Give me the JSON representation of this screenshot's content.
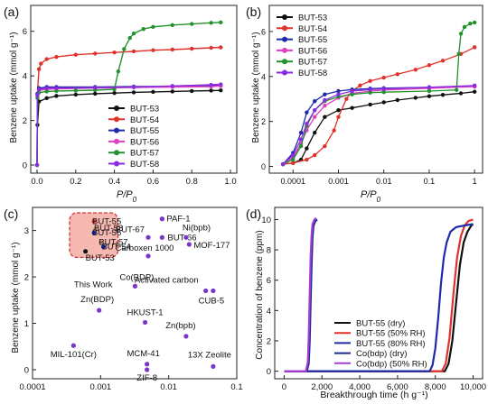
{
  "figure": {
    "panels": [
      "(a)",
      "(b)",
      "(c)",
      "(d)"
    ],
    "colors": {
      "BUT-53": "#111111",
      "BUT-54": "#e0322b",
      "BUT-55": "#1f2aa8",
      "BUT-56": "#e03ec0",
      "BUT-57": "#22922c",
      "BUT-58": "#8a2be2",
      "cbdp-dry": "#1b2b8f",
      "cbdp-wet": "#a43cd6",
      "purple-marker": "#7a35c9",
      "highlight-fill": "#f6b9b2",
      "highlight-stroke": "#d23a3a"
    }
  },
  "chart_data": [
    {
      "panel": "(a)",
      "type": "line",
      "xlabel": "P/P0",
      "ylabel": "Benzene uptake (mmol g⁻¹)",
      "xlim": [
        0,
        1.0
      ],
      "ylim": [
        0,
        7
      ],
      "xticks": [
        "0.0",
        "0.2",
        "0.4",
        "0.6",
        "0.8",
        "1.0"
      ],
      "yticks": [
        "0",
        "2",
        "4",
        "6"
      ],
      "legend": "bottom-right",
      "series": [
        {
          "name": "BUT-53",
          "x": [
            0.0,
            0.002,
            0.01,
            0.05,
            0.1,
            0.2,
            0.3,
            0.4,
            0.5,
            0.6,
            0.7,
            0.8,
            0.9,
            0.95
          ],
          "y": [
            0,
            1.8,
            2.85,
            3.0,
            3.1,
            3.16,
            3.2,
            3.23,
            3.26,
            3.28,
            3.3,
            3.32,
            3.34,
            3.35
          ]
        },
        {
          "name": "BUT-54",
          "x": [
            0.0,
            0.002,
            0.01,
            0.02,
            0.05,
            0.1,
            0.2,
            0.3,
            0.4,
            0.5,
            0.6,
            0.7,
            0.8,
            0.9,
            0.95
          ],
          "y": [
            0,
            3.2,
            4.3,
            4.55,
            4.75,
            4.85,
            4.95,
            5.0,
            5.05,
            5.1,
            5.15,
            5.18,
            5.22,
            5.26,
            5.28
          ]
        },
        {
          "name": "BUT-55",
          "x": [
            0.0,
            0.002,
            0.01,
            0.05,
            0.1,
            0.3,
            0.5,
            0.7,
            0.9,
            0.95
          ],
          "y": [
            0,
            3.2,
            3.45,
            3.5,
            3.5,
            3.5,
            3.52,
            3.53,
            3.55,
            3.56
          ]
        },
        {
          "name": "BUT-56",
          "x": [
            0.0,
            0.002,
            0.01,
            0.05,
            0.1,
            0.3,
            0.5,
            0.7,
            0.9,
            0.95
          ],
          "y": [
            0,
            3.1,
            3.35,
            3.4,
            3.42,
            3.45,
            3.48,
            3.5,
            3.52,
            3.55
          ]
        },
        {
          "name": "BUT-57",
          "x": [
            0.0,
            0.002,
            0.01,
            0.05,
            0.1,
            0.2,
            0.3,
            0.4,
            0.42,
            0.45,
            0.48,
            0.5,
            0.55,
            0.6,
            0.7,
            0.8,
            0.9,
            0.95
          ],
          "y": [
            0,
            3.0,
            3.25,
            3.3,
            3.32,
            3.34,
            3.36,
            3.4,
            4.2,
            5.2,
            5.7,
            5.9,
            6.1,
            6.2,
            6.28,
            6.33,
            6.38,
            6.4
          ]
        },
        {
          "name": "BUT-58",
          "x": [
            0.0,
            0.002,
            0.01,
            0.05,
            0.1,
            0.3,
            0.5,
            0.7,
            0.9,
            0.95
          ],
          "y": [
            0,
            3.15,
            3.4,
            3.45,
            3.45,
            3.47,
            3.5,
            3.55,
            3.6,
            3.62
          ]
        }
      ]
    },
    {
      "panel": "(b)",
      "type": "line",
      "xlabel": "P/P0",
      "ylabel": "Benzene uptake (mmol g⁻¹)",
      "xscale": "log",
      "xlim": [
        3e-05,
        1.5
      ],
      "ylim": [
        -0.3,
        7
      ],
      "xticks": [
        "0.0001",
        "0.001",
        "0.01",
        "0.1",
        "1"
      ],
      "yticks": [
        "0",
        "2",
        "4",
        "6"
      ],
      "legend": "top-left",
      "series": [
        {
          "name": "BUT-53",
          "x": [
            6e-05,
            0.0001,
            0.00015,
            0.0002,
            0.0003,
            0.0005,
            0.001,
            0.002,
            0.005,
            0.01,
            0.02,
            0.05,
            0.1,
            0.2,
            0.5,
            1.0
          ],
          "y": [
            0.1,
            0.15,
            0.3,
            0.8,
            1.5,
            2.2,
            2.5,
            2.6,
            2.75,
            2.85,
            2.95,
            3.05,
            3.12,
            3.18,
            3.25,
            3.32
          ]
        },
        {
          "name": "BUT-54",
          "x": [
            6e-05,
            0.0001,
            0.0002,
            0.0003,
            0.0005,
            0.0008,
            0.001,
            0.0015,
            0.002,
            0.003,
            0.005,
            0.01,
            0.02,
            0.05,
            0.1,
            0.2,
            0.5,
            1.0
          ],
          "y": [
            0.1,
            0.15,
            0.3,
            0.5,
            0.9,
            1.6,
            2.2,
            3.0,
            3.35,
            3.6,
            3.8,
            3.95,
            4.1,
            4.3,
            4.5,
            4.7,
            5.0,
            5.3
          ]
        },
        {
          "name": "BUT-55",
          "x": [
            6e-05,
            0.0001,
            0.00015,
            0.0002,
            0.0003,
            0.0005,
            0.001,
            0.002,
            0.005,
            0.01,
            0.1,
            1.0
          ],
          "y": [
            0.1,
            0.6,
            1.5,
            2.4,
            2.9,
            3.2,
            3.35,
            3.42,
            3.46,
            3.48,
            3.52,
            3.56
          ]
        },
        {
          "name": "BUT-56",
          "x": [
            6e-05,
            0.0001,
            0.00015,
            0.0002,
            0.0003,
            0.0005,
            0.001,
            0.002,
            0.005,
            0.01,
            0.1,
            1.0
          ],
          "y": [
            0.1,
            0.4,
            1.0,
            1.6,
            2.2,
            2.7,
            3.05,
            3.25,
            3.35,
            3.4,
            3.47,
            3.55
          ]
        },
        {
          "name": "BUT-57",
          "x": [
            6e-05,
            0.0001,
            0.00015,
            0.0002,
            0.0003,
            0.0005,
            0.001,
            0.002,
            0.005,
            0.01,
            0.1,
            0.4,
            0.45,
            0.5,
            0.6,
            0.8,
            1.0
          ],
          "y": [
            0.1,
            0.3,
            0.9,
            1.8,
            2.5,
            2.9,
            3.1,
            3.2,
            3.28,
            3.3,
            3.35,
            3.4,
            5.0,
            5.9,
            6.2,
            6.35,
            6.4
          ]
        },
        {
          "name": "BUT-58",
          "x": [
            6e-05,
            0.0001,
            0.00015,
            0.0002,
            0.0003,
            0.0005,
            0.001,
            0.002,
            0.005,
            0.01,
            0.1,
            1.0
          ],
          "y": [
            0.1,
            0.5,
            1.2,
            1.9,
            2.5,
            2.95,
            3.2,
            3.35,
            3.42,
            3.45,
            3.52,
            3.6
          ]
        }
      ]
    },
    {
      "panel": "(c)",
      "type": "scatter",
      "xlabel": "P/P0",
      "ylabel": "Benzene uptake (mmol g⁻¹)",
      "xscale": "log",
      "xlim": [
        0.0001,
        0.1
      ],
      "ylim": [
        0,
        3.4
      ],
      "xticks": [
        "0.0001",
        "0.001",
        "0.01",
        "0.1"
      ],
      "yticks": [
        "0",
        "1",
        "2",
        "3"
      ],
      "highlight_label": "This Work",
      "points": [
        {
          "label": "BUT-55",
          "x": 0.0008,
          "y": 3.2,
          "color": "#e0322b"
        },
        {
          "label": "BUT-58",
          "x": 0.00085,
          "y": 3.05,
          "color": "#d48a6a"
        },
        {
          "label": "BUT-56",
          "x": 0.0008,
          "y": 2.95,
          "color": "#1f2aa8"
        },
        {
          "label": "BUT-57",
          "x": 0.001,
          "y": 2.75,
          "color": "#d48a6a"
        },
        {
          "label": "BUT-54",
          "x": 0.0011,
          "y": 2.65,
          "color": "#1f2aa8"
        },
        {
          "label": "BUT-53",
          "x": 0.0006,
          "y": 2.55,
          "color": "#111111"
        },
        {
          "label": "PAF-1",
          "x": 0.008,
          "y": 3.25,
          "color": "#7a35c9"
        },
        {
          "label": "BUT-67",
          "x": 0.005,
          "y": 2.85,
          "color": "#7a35c9"
        },
        {
          "label": "BUT-66",
          "x": 0.008,
          "y": 2.85,
          "color": "#7a35c9"
        },
        {
          "label": "Ni(bpb)",
          "x": 0.018,
          "y": 2.85,
          "color": "#7a35c9"
        },
        {
          "label": "MOF-177",
          "x": 0.02,
          "y": 2.7,
          "color": "#7a35c9"
        },
        {
          "label": "Carboxen 1000",
          "x": 0.005,
          "y": 2.45,
          "color": "#7a35c9"
        },
        {
          "label": "Co(BDP)",
          "x": 0.0032,
          "y": 1.8,
          "color": "#7a35c9"
        },
        {
          "label": "Activated carbon",
          "x": 0.035,
          "y": 1.7,
          "color": "#7a35c9"
        },
        {
          "label": "CUB-5",
          "x": 0.045,
          "y": 1.7,
          "color": "#7a35c9"
        },
        {
          "label": "Zn(BDP)",
          "x": 0.00095,
          "y": 1.28,
          "color": "#7a35c9"
        },
        {
          "label": "HKUST-1",
          "x": 0.0045,
          "y": 1.02,
          "color": "#7a35c9"
        },
        {
          "label": "Zn(bpb)",
          "x": 0.018,
          "y": 0.72,
          "color": "#7a35c9"
        },
        {
          "label": "MIL-101(Cr)",
          "x": 0.0004,
          "y": 0.52,
          "color": "#7a35c9"
        },
        {
          "label": "MCM-41",
          "x": 0.0048,
          "y": 0.12,
          "color": "#7a35c9"
        },
        {
          "label": "ZIF-8",
          "x": 0.0048,
          "y": 0.0,
          "color": "#7a35c9"
        },
        {
          "label": "13X Zeolite",
          "x": 0.045,
          "y": 0.07,
          "color": "#7a35c9"
        }
      ]
    },
    {
      "panel": "(d)",
      "type": "line",
      "xlabel": "Breakthrough time (h g⁻¹)",
      "ylabel": "Concentration of benzene (ppm)",
      "xlim": [
        -500,
        10500
      ],
      "ylim": [
        -0.5,
        10.8
      ],
      "xticks": [
        "0",
        "2,000",
        "4,000",
        "6,000",
        "8,000",
        "10,000"
      ],
      "yticks": [
        "0",
        "2",
        "4",
        "6",
        "8",
        "10"
      ],
      "legend": "bottom-right",
      "series": [
        {
          "name": "BUT-55 (dry)",
          "x": [
            0,
            8500,
            8700,
            8900,
            9100,
            9300,
            9500,
            9700,
            9900,
            10000
          ],
          "y": [
            0,
            0,
            0.5,
            2.0,
            4.5,
            7.0,
            8.5,
            9.2,
            9.6,
            9.7
          ]
        },
        {
          "name": "BUT-55 (50% RH)",
          "x": [
            0,
            8350,
            8550,
            8750,
            8950,
            9150,
            9350,
            9550,
            9750,
            10000
          ],
          "y": [
            0,
            0,
            0.5,
            2.2,
            5.0,
            7.5,
            8.9,
            9.6,
            9.9,
            10.0
          ]
        },
        {
          "name": "BUT-55 (80% RH)",
          "x": [
            0,
            7700,
            7850,
            8000,
            8150,
            8300,
            8450,
            8600,
            8800,
            9100,
            9500,
            10000
          ],
          "y": [
            0,
            0,
            0.4,
            1.5,
            3.5,
            5.8,
            7.5,
            8.5,
            9.2,
            9.5,
            9.6,
            9.7
          ]
        },
        {
          "name": "Co(bdp) (dry)",
          "x": [
            0,
            1200,
            1300,
            1350,
            1400,
            1450,
            1500,
            1550,
            1650,
            1750
          ],
          "y": [
            0,
            0,
            0.5,
            2.0,
            4.5,
            7.0,
            8.8,
            9.6,
            9.9,
            10.0
          ]
        },
        {
          "name": "Co(bdp) (50% RH)",
          "x": [
            0,
            1150,
            1250,
            1300,
            1350,
            1400,
            1450,
            1500,
            1600,
            1700
          ],
          "y": [
            0,
            0,
            0.6,
            2.2,
            5.0,
            7.5,
            9.0,
            9.7,
            10.0,
            10.1
          ]
        }
      ]
    }
  ]
}
